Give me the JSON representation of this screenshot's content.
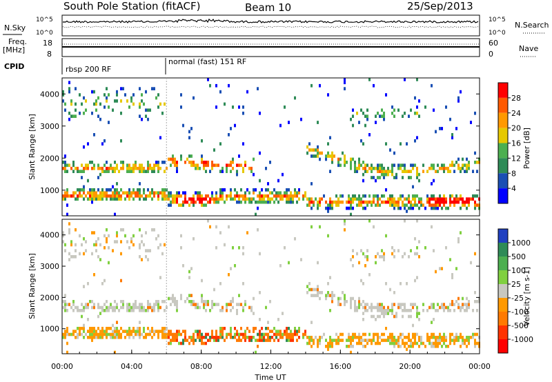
{
  "header": {
    "station": "South Pole Station (fitACF)",
    "beam": "Beam 10",
    "date": "25/Sep/2013"
  },
  "nsky_panel": {
    "left_label": "N.Sky",
    "right_label": "N.Search",
    "left_ticks": [
      "10^5",
      "10^0"
    ],
    "right_ticks": [
      "10^5",
      "10^0"
    ]
  },
  "freq_panel": {
    "left_label_1": "Freq.",
    "left_label_2": "[MHz]",
    "right_label": "Nave",
    "left_ticks": [
      "18",
      "8"
    ],
    "right_ticks": [
      "60",
      "0"
    ]
  },
  "cpid": {
    "label": "CPID",
    "segments": [
      {
        "start_hour": 0,
        "label": "rbsp 200 RF"
      },
      {
        "start_hour": 6,
        "label": "normal (fast) 151 RF"
      }
    ]
  },
  "chart_data": [
    {
      "type": "heatmap",
      "name": "power",
      "ylabel": "Slant Range [km]",
      "yticks": [
        "4000",
        "3000",
        "2000",
        "1000"
      ],
      "ylim": [
        200,
        4500
      ],
      "xlim_hours": [
        0,
        24
      ],
      "colorbar": {
        "label": "Power [dB]",
        "ticks": [
          "28",
          "24",
          "20",
          "16",
          "12",
          "8",
          "4"
        ],
        "colors": [
          "#ff0000",
          "#ff5a00",
          "#ff9900",
          "#e6c800",
          "#4caf50",
          "#2e8b57",
          "#1a4fb4",
          "#0000ff"
        ]
      }
    },
    {
      "type": "heatmap",
      "name": "velocity",
      "ylabel": "Slant Range [km]",
      "yticks": [
        "4000",
        "3000",
        "2000",
        "1000"
      ],
      "ylim": [
        200,
        4500
      ],
      "xlim_hours": [
        0,
        24
      ],
      "colorbar": {
        "label": "Velocity [m s-1]",
        "ticks": [
          "1000",
          "500",
          "100",
          "25",
          "-25",
          "-100",
          "-500",
          "-1000"
        ],
        "colors": [
          "#2040c0",
          "#2e8b57",
          "#4caf50",
          "#80d040",
          "#c8c8c0",
          "#ff9900",
          "#ff7a00",
          "#ff3300",
          "#ff0000"
        ]
      }
    }
  ],
  "x_axis": {
    "ticks": [
      "00:00",
      "04:00",
      "08:00",
      "12:00",
      "16:00",
      "20:00",
      "00:00"
    ],
    "label": "Time UT"
  }
}
